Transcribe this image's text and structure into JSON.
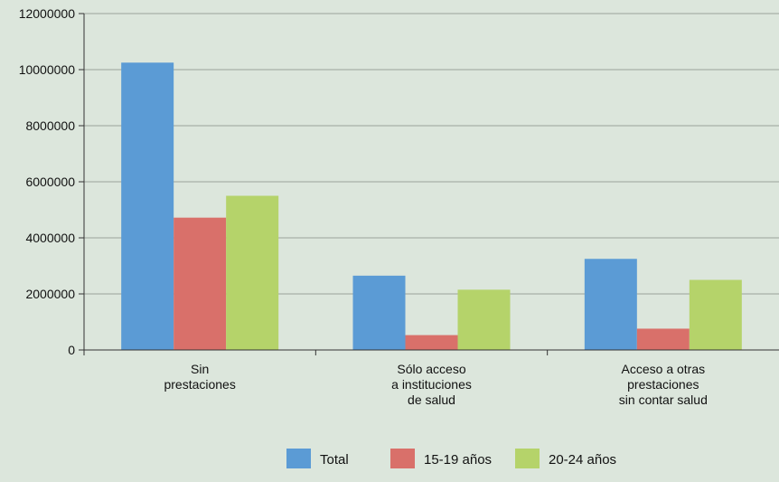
{
  "chart_data": {
    "type": "bar",
    "categories": [
      [
        "Sin",
        "prestaciones"
      ],
      [
        "Sólo acceso",
        "a instituciones",
        "de salud"
      ],
      [
        "Acceso a otras",
        "prestaciones",
        "sin contar salud"
      ]
    ],
    "series": [
      {
        "name": "Total",
        "color": "#5b9bd5",
        "values": [
          10250000,
          2650000,
          3250000
        ]
      },
      {
        "name": "15-19 años",
        "color": "#d9706a",
        "values": [
          4720000,
          530000,
          760000
        ]
      },
      {
        "name": "20-24 años",
        "color": "#b5d36a",
        "values": [
          5500000,
          2150000,
          2500000
        ]
      }
    ],
    "ylim": [
      0,
      12000000
    ],
    "yticks": [
      "0",
      "2000000",
      "4000000",
      "6000000",
      "8000000",
      "10000000",
      "12000000"
    ],
    "grid": true,
    "gridColor": "#9aa19a",
    "legend": "bottom-center"
  }
}
